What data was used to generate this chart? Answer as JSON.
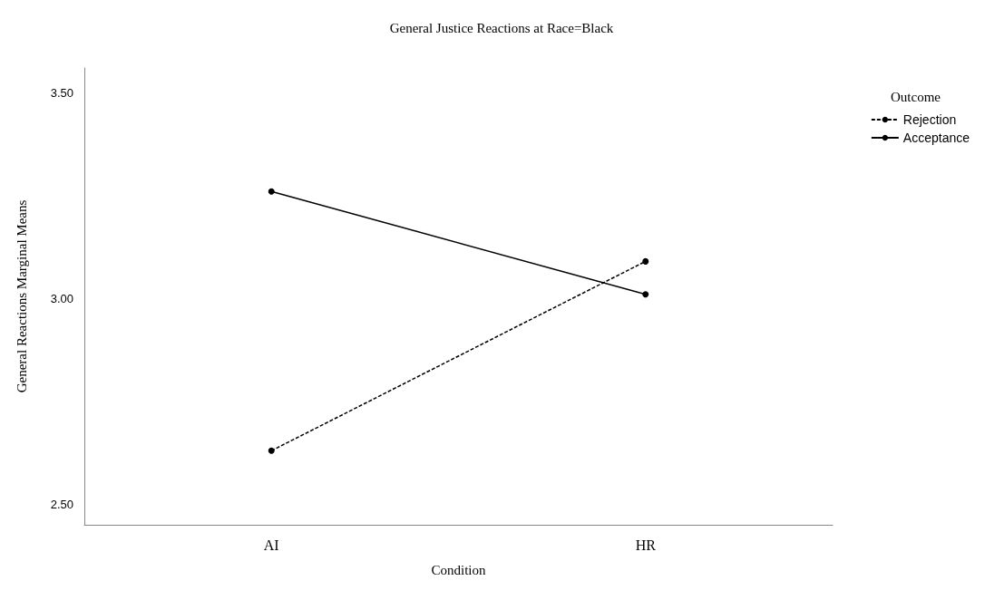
{
  "chart_data": {
    "type": "line",
    "title": "General Justice Reactions at Race=Black",
    "xlabel": "Condition",
    "ylabel": "General Reactions Marginal Means",
    "legend_title": "Outcome",
    "categories": [
      "AI",
      "HR"
    ],
    "series": [
      {
        "name": "Rejection",
        "color": "#000000",
        "values": [
          2.63,
          3.09
        ],
        "line_style": "dashed"
      },
      {
        "name": "Acceptance",
        "color": "#000000",
        "values": [
          3.26,
          3.01
        ],
        "line_style": "solid"
      }
    ],
    "ylim": [
      2.45,
      3.56
    ],
    "yticks": [
      {
        "value": 2.5,
        "label": "2.50"
      },
      {
        "value": 3,
        "label": "3.00"
      },
      {
        "value": 3.5,
        "label": "3.50"
      }
    ],
    "grid": false,
    "legend": "top right",
    "marker": "circle"
  }
}
